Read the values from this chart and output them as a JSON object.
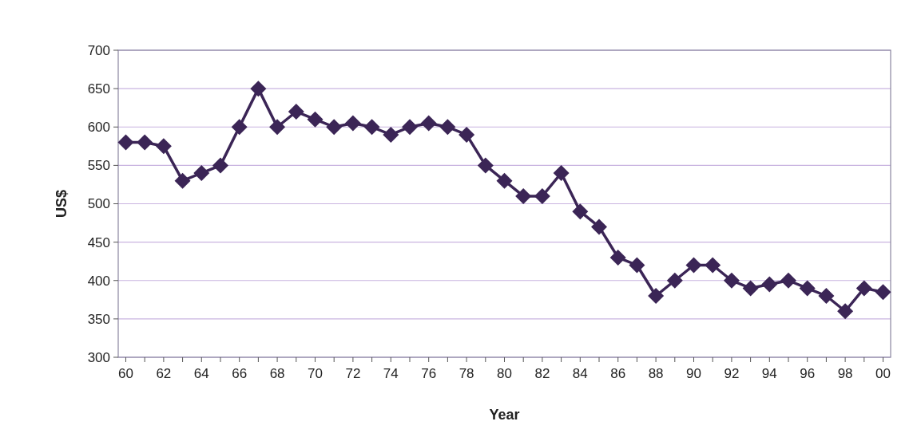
{
  "chart_data": {
    "type": "line",
    "xlabel": "Year",
    "ylabel": "US$",
    "categories": [
      "60",
      null,
      "62",
      null,
      "64",
      null,
      "66",
      null,
      "68",
      null,
      "70",
      null,
      "72",
      null,
      "74",
      null,
      "76",
      null,
      "78",
      null,
      "80",
      null,
      "82",
      null,
      "84",
      null,
      "86",
      null,
      "88",
      null,
      "90",
      null,
      "92",
      null,
      "94",
      null,
      "96",
      null,
      "98",
      null,
      "00"
    ],
    "series": [
      {
        "color": "#3b2556",
        "values": [
          580,
          580,
          575,
          530,
          540,
          550,
          600,
          650,
          600,
          620,
          610,
          600,
          605,
          600,
          590,
          600,
          605,
          600,
          590,
          550,
          530,
          510,
          510,
          540,
          490,
          470,
          430,
          420,
          380,
          400,
          420,
          420,
          400,
          390,
          395,
          400,
          390,
          380,
          360,
          390,
          385
        ]
      }
    ],
    "ylim": [
      300,
      700
    ],
    "yticks": [
      300,
      350,
      400,
      450,
      500,
      550,
      600,
      650,
      700
    ],
    "grid": "y",
    "marker": "diamond",
    "line_style": "solid"
  }
}
